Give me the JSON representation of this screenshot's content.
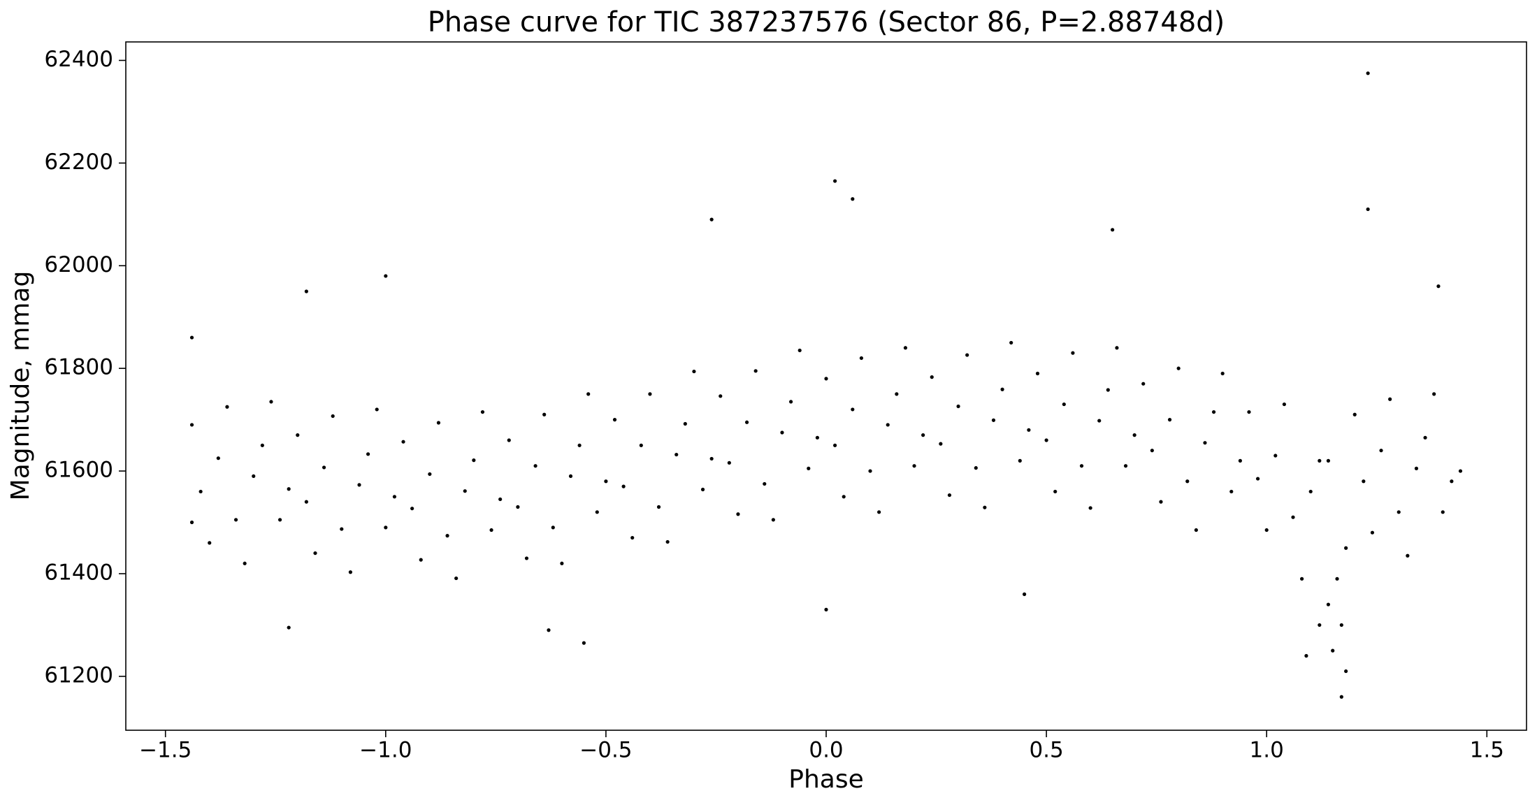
{
  "chart_data": {
    "type": "scatter",
    "title": "Phase curve for TIC 387237576 (Sector 86, P=2.88748d)",
    "x_label": "Phase",
    "y_label": "Magnitude, mmag",
    "color": "#000000",
    "xlim": [
      -1.59,
      1.59
    ],
    "ylim": [
      61095,
      62436
    ],
    "xticks": [
      {
        "value": -1.5,
        "label": "−1.5"
      },
      {
        "value": -1.0,
        "label": "−1.0"
      },
      {
        "value": -0.5,
        "label": "−0.5"
      },
      {
        "value": 0.0,
        "label": "0.0"
      },
      0.5,
      {
        "value": 1.0,
        "label": "1.0"
      },
      1.5
    ],
    "yticks": [
      61200,
      61400,
      61600,
      61800,
      62000,
      62200,
      62400
    ],
    "x": [
      -1.44,
      -1.42,
      -1.4,
      -1.38,
      -1.36,
      -1.34,
      -1.32,
      -1.3,
      -1.28,
      -1.26,
      -1.24,
      -1.22,
      -1.2,
      -1.18,
      -1.16,
      -1.14,
      -1.12,
      -1.1,
      -1.08,
      -1.06,
      -1.04,
      -1.02,
      -1.0,
      -0.98,
      -0.96,
      -0.94,
      -0.92,
      -0.9,
      -0.88,
      -0.86,
      -0.84,
      -0.82,
      -0.8,
      -0.78,
      -0.76,
      -0.74,
      -0.72,
      -0.7,
      -0.68,
      -0.66,
      -0.64,
      -0.62,
      -0.6,
      -0.58,
      -0.56,
      -0.54,
      -0.52,
      -0.5,
      -0.48,
      -0.46,
      -0.44,
      -0.42,
      -0.4,
      -0.38,
      -0.36,
      -0.34,
      -0.32,
      -0.3,
      -0.28,
      -0.26,
      -0.24,
      -0.22,
      -0.2,
      -0.18,
      -0.16,
      -0.14,
      -0.12,
      -0.1,
      -0.08,
      -0.06,
      -0.04,
      -0.02,
      0.0,
      0.02,
      0.04,
      0.06,
      0.08,
      0.1,
      0.12,
      0.14,
      0.16,
      0.18,
      0.2,
      0.22,
      0.24,
      0.26,
      0.28,
      0.3,
      0.32,
      0.34,
      0.36,
      0.38,
      0.4,
      0.42,
      0.44,
      0.46,
      0.48,
      0.5,
      0.52,
      0.54,
      0.56,
      0.58,
      0.6,
      0.62,
      0.64,
      0.66,
      0.68,
      0.7,
      0.72,
      0.74,
      0.76,
      0.78,
      0.8,
      0.82,
      0.84,
      0.86,
      0.88,
      0.9,
      0.92,
      0.94,
      0.96,
      0.98,
      1.0,
      1.02,
      1.04,
      1.06,
      1.08,
      1.1,
      1.12,
      1.14,
      1.16,
      1.18,
      1.2,
      1.22,
      1.24,
      1.26,
      1.28,
      1.3,
      1.32,
      1.34,
      1.36,
      1.38,
      1.4,
      1.42,
      1.12,
      1.15,
      1.17,
      1.18,
      1.14,
      1.09,
      1.17,
      1.23,
      1.23,
      0.02,
      0.06,
      -0.26,
      0.65,
      -1.0,
      -1.18,
      -0.55,
      -0.63,
      -1.22,
      -1.44,
      1.44,
      -1.44,
      0.45,
      0.0,
      1.39
    ],
    "values": [
      61690,
      61560,
      61460,
      61625,
      61725,
      61505,
      61420,
      61590,
      61650,
      61735,
      61505,
      61565,
      61670,
      61540,
      61440,
      61607,
      61707,
      61487,
      61403,
      61573,
      61633,
      61720,
      61490,
      61550,
      61657,
      61527,
      61427,
      61594,
      61694,
      61474,
      61391,
      61561,
      61621,
      61715,
      61485,
      61545,
      61660,
      61530,
      61430,
      61610,
      61710,
      61490,
      61420,
      61590,
      61650,
      61750,
      61520,
      61580,
      61700,
      61570,
      61470,
      61650,
      61750,
      61530,
      61462,
      61632,
      61692,
      61794,
      61564,
      61624,
      61746,
      61616,
      61516,
      61695,
      61795,
      61575,
      61505,
      61675,
      61735,
      61835,
      61605,
      61665,
      61780,
      61650,
      61550,
      61720,
      61820,
      61600,
      61520,
      61690,
      61750,
      61840,
      61610,
      61670,
      61783,
      61653,
      61553,
      61726,
      61826,
      61606,
      61529,
      61699,
      61759,
      61850,
      61620,
      61680,
      61790,
      61660,
      61560,
      61730,
      61830,
      61610,
      61528,
      61698,
      61758,
      61840,
      61610,
      61670,
      61770,
      61640,
      61540,
      61700,
      61800,
      61580,
      61485,
      61655,
      61715,
      61790,
      61560,
      61620,
      61715,
      61585,
      61485,
      61630,
      61730,
      61510,
      61390,
      61560,
      61620,
      61620,
      61390,
      61450,
      61710,
      61580,
      61480,
      61640,
      61740,
      61520,
      61435,
      61605,
      61665,
      61750,
      61520,
      61580,
      61300,
      61250,
      61160,
      61210,
      61340,
      61240,
      61300,
      62375,
      62110,
      62165,
      62130,
      62090,
      62070,
      61980,
      61950,
      61265,
      61290,
      61295,
      61860,
      61600,
      61500,
      61360,
      61330,
      61960
    ]
  }
}
